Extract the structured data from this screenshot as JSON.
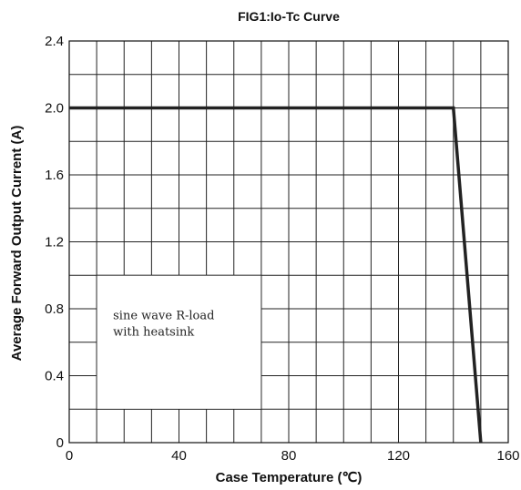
{
  "chart_data": {
    "type": "line",
    "title": "FIG1:Io-Tc Curve",
    "xlabel": "Case Temperature (℃)",
    "ylabel": "Average Forward Output Current (A)",
    "xlim": [
      0,
      160
    ],
    "ylim": [
      0,
      2.4
    ],
    "x_ticks": [
      0,
      40,
      80,
      120,
      160
    ],
    "x_tick_labels": [
      "0",
      "40",
      "80",
      "120",
      "160"
    ],
    "y_ticks": [
      0,
      0.4,
      0.8,
      1.2,
      1.6,
      2.0,
      2.4
    ],
    "y_tick_labels": [
      "0",
      "0.4",
      "0.8",
      "1.2",
      "1.6",
      "2.0",
      "2.4"
    ],
    "grid": true,
    "series": [
      {
        "x": [
          0,
          140,
          150
        ],
        "y": [
          2.0,
          2.0,
          0
        ]
      }
    ],
    "annotation": [
      "sine wave R-load",
      "with heatsink"
    ],
    "line_color": "#222222"
  }
}
